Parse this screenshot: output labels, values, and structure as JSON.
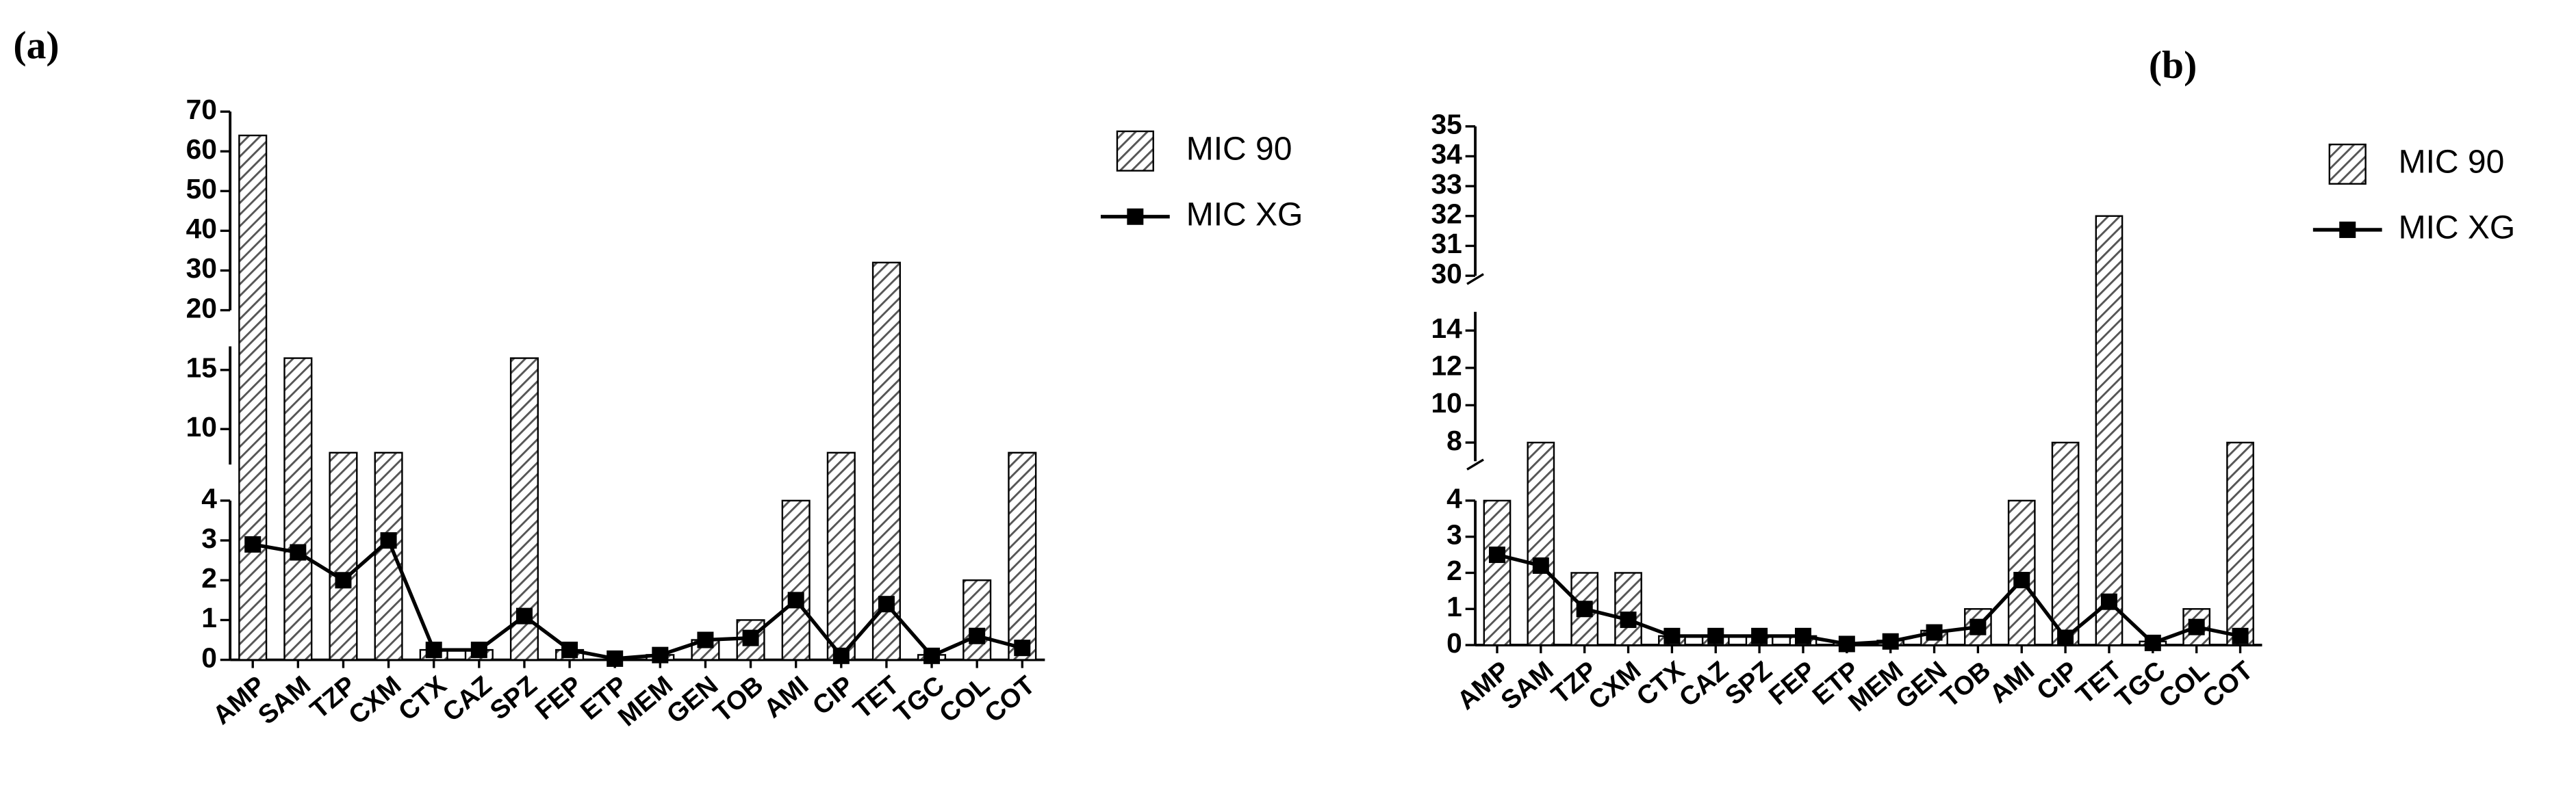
{
  "chart_data": [
    {
      "type": "bar",
      "label": "(a)",
      "legend": "upper right",
      "categories": [
        "AMP",
        "SAM",
        "TZP",
        "CXM",
        "CTX",
        "CAZ",
        "SPZ",
        "FEP",
        "ETP",
        "MEM",
        "GEN",
        "TOB",
        "AMI",
        "CIP",
        "TET",
        "TGC",
        "COL",
        "COT"
      ],
      "series": [
        {
          "name": "MIC 90",
          "color": "#555555",
          "values": [
            64,
            16,
            8,
            8,
            0.25,
            0.25,
            16,
            0.25,
            0,
            0.125,
            0.5,
            1,
            4,
            8,
            32,
            0.125,
            2,
            8
          ]
        },
        {
          "name": "MIC XG",
          "color": "#000000",
          "values": [
            2.9,
            2.7,
            2.0,
            3.0,
            0.25,
            0.25,
            1.1,
            0.25,
            0.03,
            0.12,
            0.5,
            0.55,
            1.5,
            0.1,
            1.4,
            0.1,
            0.6,
            0.3
          ]
        }
      ],
      "y_segments": [
        {
          "ylim": [
            0,
            4
          ],
          "yticks": [
            0,
            1,
            2,
            3,
            4
          ]
        },
        {
          "ylim": [
            7,
            17
          ],
          "yticks": [
            10,
            15
          ]
        },
        {
          "ylim": [
            20,
            70
          ],
          "yticks": [
            20,
            30,
            40,
            50,
            60,
            70
          ]
        }
      ]
    },
    {
      "type": "bar",
      "label": "(b)",
      "legend": "upper right",
      "categories": [
        "AMP",
        "SAM",
        "TZP",
        "CXM",
        "CTX",
        "CAZ",
        "SPZ",
        "FEP",
        "ETP",
        "MEM",
        "GEN",
        "TOB",
        "AMI",
        "CIP",
        "TET",
        "TGC",
        "COL",
        "COT"
      ],
      "series": [
        {
          "name": "MIC 90",
          "color": "#555555",
          "values": [
            4,
            8,
            2,
            2,
            0.25,
            0.25,
            0.25,
            0.25,
            0.06,
            0.125,
            0.4,
            1,
            4,
            8,
            32,
            0.1,
            1,
            8
          ]
        },
        {
          "name": "MIC XG",
          "color": "#000000",
          "values": [
            2.5,
            2.2,
            1.0,
            0.7,
            0.25,
            0.25,
            0.25,
            0.25,
            0.03,
            0.1,
            0.35,
            0.5,
            1.8,
            0.2,
            1.2,
            0.06,
            0.5,
            0.25
          ]
        }
      ],
      "y_segments": [
        {
          "ylim": [
            0,
            4
          ],
          "yticks": [
            0,
            1,
            2,
            3,
            4
          ]
        },
        {
          "ylim": [
            7,
            15
          ],
          "yticks": [
            8,
            10,
            12,
            14
          ]
        },
        {
          "ylim": [
            30,
            35
          ],
          "yticks": [
            30,
            31,
            32,
            33,
            34,
            35
          ]
        }
      ]
    }
  ]
}
